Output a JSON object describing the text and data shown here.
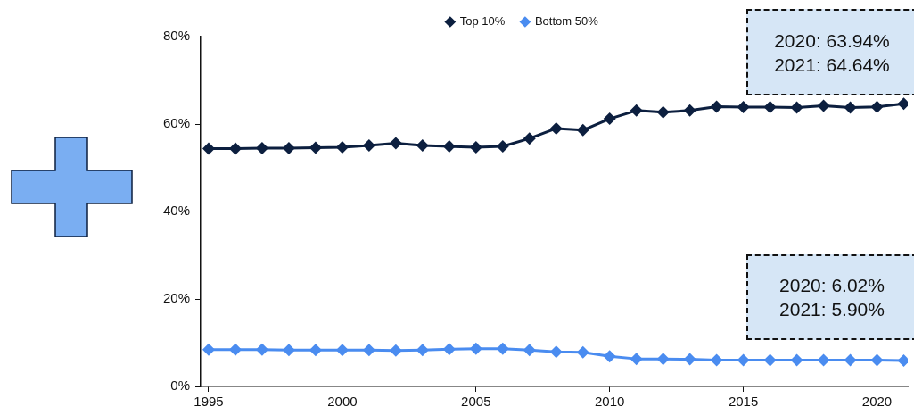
{
  "chart_data": {
    "type": "line",
    "x": [
      1995,
      1996,
      1997,
      1998,
      1999,
      2000,
      2001,
      2002,
      2003,
      2004,
      2005,
      2006,
      2007,
      2008,
      2009,
      2010,
      2011,
      2012,
      2013,
      2014,
      2015,
      2016,
      2017,
      2018,
      2019,
      2020,
      2021
    ],
    "series": [
      {
        "name": "Top 10%",
        "color": "#0c1f3f",
        "values": [
          54.4,
          54.4,
          54.5,
          54.5,
          54.6,
          54.7,
          55.1,
          55.6,
          55.1,
          54.9,
          54.7,
          54.9,
          56.7,
          59.0,
          58.6,
          61.2,
          63.1,
          62.7,
          63.1,
          64.0,
          63.9,
          63.9,
          63.8,
          64.2,
          63.8,
          63.94,
          64.64
        ]
      },
      {
        "name": "Bottom 50%",
        "color": "#4a8cf0",
        "values": [
          8.4,
          8.4,
          8.4,
          8.3,
          8.3,
          8.3,
          8.3,
          8.2,
          8.3,
          8.5,
          8.6,
          8.6,
          8.3,
          7.9,
          7.8,
          6.9,
          6.3,
          6.3,
          6.2,
          6.0,
          6.0,
          6.0,
          6.0,
          6.0,
          6.0,
          6.02,
          5.9
        ]
      }
    ],
    "xlim": [
      1994.7,
      2021.15
    ],
    "xticks": [
      1995,
      2000,
      2005,
      2010,
      2015,
      2020
    ],
    "ylim": [
      0,
      80
    ],
    "yticks": [
      {
        "value": 0,
        "label": "0%"
      },
      {
        "value": 20,
        "label": "20%"
      },
      {
        "value": 40,
        "label": "40%"
      },
      {
        "value": 60,
        "label": "60%"
      },
      {
        "value": 80,
        "label": "80%"
      }
    ],
    "annotations": [
      "2020: 63.94%\n2021: 64.64%",
      "2020: 6.02%\n2021: 5.90%"
    ],
    "grid": false,
    "legend": "top",
    "marker": "diamond",
    "line_style": "solid"
  }
}
